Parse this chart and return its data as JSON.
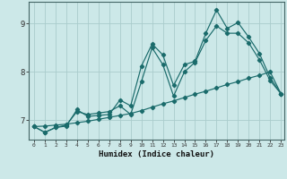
{
  "xlabel": "Humidex (Indice chaleur)",
  "bg_color": "#cce8e8",
  "grid_color": "#aacccc",
  "line_color": "#1a6b6b",
  "xlim": [
    -0.5,
    23.3
  ],
  "ylim": [
    6.6,
    9.45
  ],
  "xtick_labels": [
    "0",
    "1",
    "2",
    "3",
    "4",
    "5",
    "6",
    "7",
    "8",
    "9",
    "10",
    "11",
    "12",
    "13",
    "14",
    "15",
    "16",
    "17",
    "18",
    "19",
    "20",
    "21",
    "22",
    "23"
  ],
  "ytick_values": [
    7,
    8,
    9
  ],
  "line1_x": [
    0,
    1,
    2,
    3,
    4,
    5,
    6,
    7,
    8,
    9,
    10,
    11,
    12,
    13,
    14,
    15,
    16,
    17,
    18,
    19,
    20,
    21,
    22,
    23
  ],
  "line1_y": [
    6.87,
    6.75,
    6.85,
    6.88,
    7.22,
    7.08,
    7.1,
    7.12,
    7.42,
    7.3,
    8.12,
    8.58,
    8.35,
    7.72,
    8.15,
    8.22,
    8.8,
    9.28,
    8.9,
    9.02,
    8.72,
    8.38,
    7.88,
    7.55
  ],
  "line2_x": [
    0,
    1,
    2,
    3,
    4,
    5,
    6,
    7,
    8,
    9,
    10,
    11,
    12,
    13,
    14,
    15,
    16,
    17,
    18,
    19,
    20,
    21,
    22,
    23
  ],
  "line2_y": [
    6.87,
    6.75,
    6.85,
    6.9,
    7.18,
    7.12,
    7.15,
    7.18,
    7.3,
    7.12,
    7.8,
    8.5,
    8.15,
    7.5,
    8.0,
    8.2,
    8.65,
    8.95,
    8.8,
    8.8,
    8.6,
    8.25,
    7.82,
    7.55
  ],
  "line3_x": [
    0,
    1,
    2,
    3,
    4,
    5,
    6,
    7,
    8,
    9,
    10,
    11,
    12,
    13,
    14,
    15,
    16,
    17,
    18,
    19,
    20,
    21,
    22,
    23
  ],
  "line3_y": [
    6.87,
    6.88,
    6.9,
    6.92,
    6.95,
    6.98,
    7.02,
    7.06,
    7.1,
    7.14,
    7.2,
    7.27,
    7.34,
    7.4,
    7.47,
    7.54,
    7.6,
    7.67,
    7.74,
    7.8,
    7.87,
    7.93,
    8.0,
    7.55
  ]
}
